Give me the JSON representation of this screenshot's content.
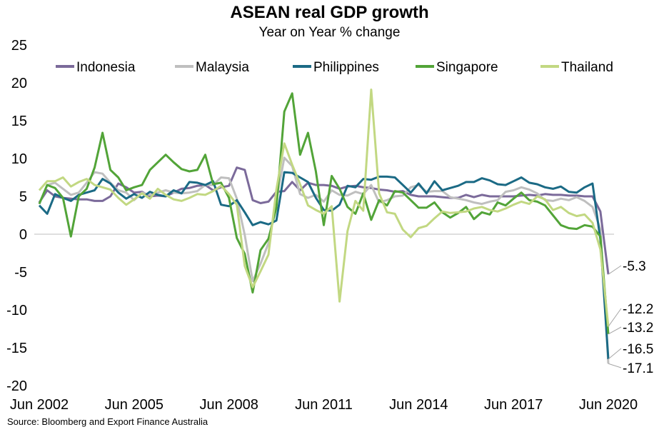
{
  "title": "ASEAN real GDP growth",
  "subtitle": "Year on Year % change",
  "source": "Source: Bloomberg and Export Finance Australia",
  "chart_data": {
    "type": "line",
    "title": "ASEAN real GDP growth",
    "subtitle": "Year on Year % change",
    "xlabel": "",
    "ylabel": "",
    "ylim": [
      -20,
      25
    ],
    "yticks": [
      25,
      20,
      15,
      10,
      5,
      0,
      -5,
      -10,
      -15,
      -20
    ],
    "xticks": [
      "Jun 2002",
      "Jun 2005",
      "Jun 2008",
      "Jun 2011",
      "Jun 2014",
      "Jun 2017",
      "Jun 2020"
    ],
    "grid": false,
    "legend": "top",
    "x": [
      "Jun 2002",
      "Sep 2002",
      "Dec 2002",
      "Mar 2003",
      "Jun 2003",
      "Sep 2003",
      "Dec 2003",
      "Mar 2004",
      "Jun 2004",
      "Sep 2004",
      "Dec 2004",
      "Mar 2005",
      "Jun 2005",
      "Sep 2005",
      "Dec 2005",
      "Mar 2006",
      "Jun 2006",
      "Sep 2006",
      "Dec 2006",
      "Mar 2007",
      "Jun 2007",
      "Sep 2007",
      "Dec 2007",
      "Mar 2008",
      "Jun 2008",
      "Sep 2008",
      "Dec 2008",
      "Mar 2009",
      "Jun 2009",
      "Sep 2009",
      "Dec 2009",
      "Mar 2010",
      "Jun 2010",
      "Sep 2010",
      "Dec 2010",
      "Mar 2011",
      "Jun 2011",
      "Sep 2011",
      "Dec 2011",
      "Mar 2012",
      "Jun 2012",
      "Sep 2012",
      "Dec 2012",
      "Mar 2013",
      "Jun 2013",
      "Sep 2013",
      "Dec 2013",
      "Mar 2014",
      "Jun 2014",
      "Sep 2014",
      "Dec 2014",
      "Mar 2015",
      "Jun 2015",
      "Sep 2015",
      "Dec 2015",
      "Mar 2016",
      "Jun 2016",
      "Sep 2016",
      "Dec 2016",
      "Mar 2017",
      "Jun 2017",
      "Sep 2017",
      "Dec 2017",
      "Mar 2018",
      "Jun 2018",
      "Sep 2018",
      "Dec 2018",
      "Mar 2019",
      "Jun 2019",
      "Sep 2019",
      "Dec 2019",
      "Mar 2020",
      "Jun 2020"
    ],
    "series": [
      {
        "name": "Indonesia",
        "color": "#7b6a9a",
        "end_label": "-5.3",
        "values": [
          4.2,
          5.8,
          5.0,
          4.8,
          4.7,
          4.6,
          4.6,
          4.4,
          4.4,
          5.0,
          6.7,
          6.2,
          5.5,
          5.6,
          5.0,
          5.1,
          5.0,
          5.5,
          6.0,
          6.1,
          6.4,
          6.5,
          5.8,
          6.2,
          6.4,
          8.8,
          8.5,
          4.5,
          4.1,
          4.3,
          5.6,
          5.7,
          6.9,
          5.8,
          6.8,
          6.5,
          6.5,
          6.4,
          6.0,
          6.3,
          6.4,
          6.2,
          6.1,
          5.9,
          5.8,
          5.6,
          5.7,
          5.2,
          5.0,
          5.0,
          5.0,
          4.9,
          4.8,
          4.8,
          5.2,
          4.9,
          5.2,
          5.0,
          5.0,
          5.0,
          5.0,
          5.1,
          5.2,
          5.1,
          5.3,
          5.2,
          5.2,
          5.1,
          5.1,
          5.0,
          5.0,
          3.0,
          -5.3
        ]
      },
      {
        "name": "Malaysia",
        "color": "#bfbfbf",
        "end_label": "-17.1",
        "values": [
          4.0,
          6.5,
          6.8,
          6.0,
          5.2,
          5.5,
          6.8,
          8.2,
          8.0,
          6.8,
          5.8,
          5.5,
          4.5,
          5.5,
          5.2,
          5.5,
          5.8,
          5.5,
          5.4,
          5.5,
          5.7,
          6.5,
          6.5,
          7.5,
          7.4,
          4.7,
          -0.1,
          -6.2,
          -3.9,
          -1.2,
          4.5,
          10.1,
          9.0,
          5.3,
          4.8,
          5.2,
          4.3,
          5.8,
          5.2,
          5.1,
          5.6,
          5.3,
          6.5,
          4.2,
          4.5,
          5.0,
          5.1,
          6.2,
          6.5,
          5.6,
          5.7,
          5.7,
          4.9,
          4.7,
          4.5,
          4.2,
          4.0,
          4.3,
          4.5,
          5.6,
          5.8,
          6.2,
          5.9,
          5.4,
          4.5,
          4.4,
          4.7,
          4.5,
          4.9,
          4.4,
          3.6,
          0.7,
          -17.1
        ]
      },
      {
        "name": "Philippines",
        "color": "#1b6a85",
        "end_label": "-16.5",
        "values": [
          3.8,
          2.7,
          5.3,
          4.8,
          4.4,
          5.2,
          5.5,
          5.8,
          7.3,
          6.7,
          5.5,
          4.7,
          5.3,
          4.8,
          5.6,
          5.2,
          5.0,
          5.8,
          5.4,
          6.9,
          6.8,
          6.5,
          7.0,
          3.9,
          3.7,
          4.5,
          2.9,
          1.2,
          1.6,
          1.3,
          1.8,
          8.2,
          8.1,
          7.5,
          6.9,
          4.8,
          3.2,
          3.1,
          3.9,
          6.4,
          6.2,
          7.3,
          7.2,
          7.6,
          7.6,
          7.5,
          6.5,
          5.5,
          6.7,
          5.4,
          7.0,
          5.8,
          6.1,
          6.4,
          6.9,
          6.9,
          7.4,
          7.1,
          6.6,
          6.5,
          7.0,
          7.5,
          6.8,
          6.6,
          6.2,
          6.0,
          6.3,
          5.6,
          5.5,
          6.2,
          6.7,
          -0.7,
          -16.5
        ]
      },
      {
        "name": "Singapore",
        "color": "#52a438",
        "end_label": "-13.2",
        "values": [
          4.0,
          6.5,
          6.1,
          4.8,
          -0.3,
          5.0,
          6.0,
          8.8,
          13.4,
          8.5,
          7.5,
          5.8,
          6.2,
          6.5,
          8.5,
          9.5,
          10.5,
          9.5,
          8.6,
          8.3,
          8.5,
          10.5,
          6.6,
          6.8,
          4.8,
          -0.5,
          -2.6,
          -7.7,
          -2.1,
          -0.6,
          3.5,
          16.2,
          18.6,
          10.5,
          13.4,
          8.3,
          1.2,
          7.7,
          6.0,
          3.6,
          2.7,
          5.4,
          1.9,
          4.5,
          3.8,
          5.7,
          5.5,
          4.5,
          3.5,
          3.5,
          4.2,
          2.9,
          2.2,
          2.8,
          3.6,
          2.0,
          2.9,
          2.6,
          4.2,
          3.8,
          4.7,
          5.5,
          4.5,
          4.3,
          3.8,
          2.5,
          1.2,
          0.8,
          0.7,
          1.2,
          1.0,
          -0.3,
          -13.2
        ]
      },
      {
        "name": "Thailand",
        "color": "#c2d882",
        "end_label": "-12.2",
        "values": [
          5.8,
          7.0,
          7.0,
          7.5,
          6.3,
          6.9,
          7.3,
          6.5,
          6.2,
          5.9,
          4.8,
          3.9,
          4.6,
          5.4,
          4.7,
          6.0,
          5.2,
          4.6,
          4.4,
          4.8,
          5.3,
          5.2,
          5.7,
          6.4,
          5.3,
          3.9,
          -4.2,
          -7.0,
          -4.9,
          -2.7,
          5.9,
          12.0,
          9.2,
          6.6,
          3.8,
          3.2,
          2.7,
          3.7,
          -8.9,
          0.4,
          4.4,
          3.1,
          19.1,
          5.4,
          2.9,
          2.7,
          0.6,
          -0.4,
          0.8,
          1.1,
          2.1,
          3.0,
          2.8,
          2.9,
          3.0,
          3.4,
          3.6,
          3.2,
          3.0,
          3.4,
          3.9,
          4.3,
          4.0,
          5.0,
          4.6,
          3.2,
          3.6,
          2.8,
          2.4,
          2.6,
          1.5,
          -2.0,
          -12.2
        ]
      }
    ]
  }
}
